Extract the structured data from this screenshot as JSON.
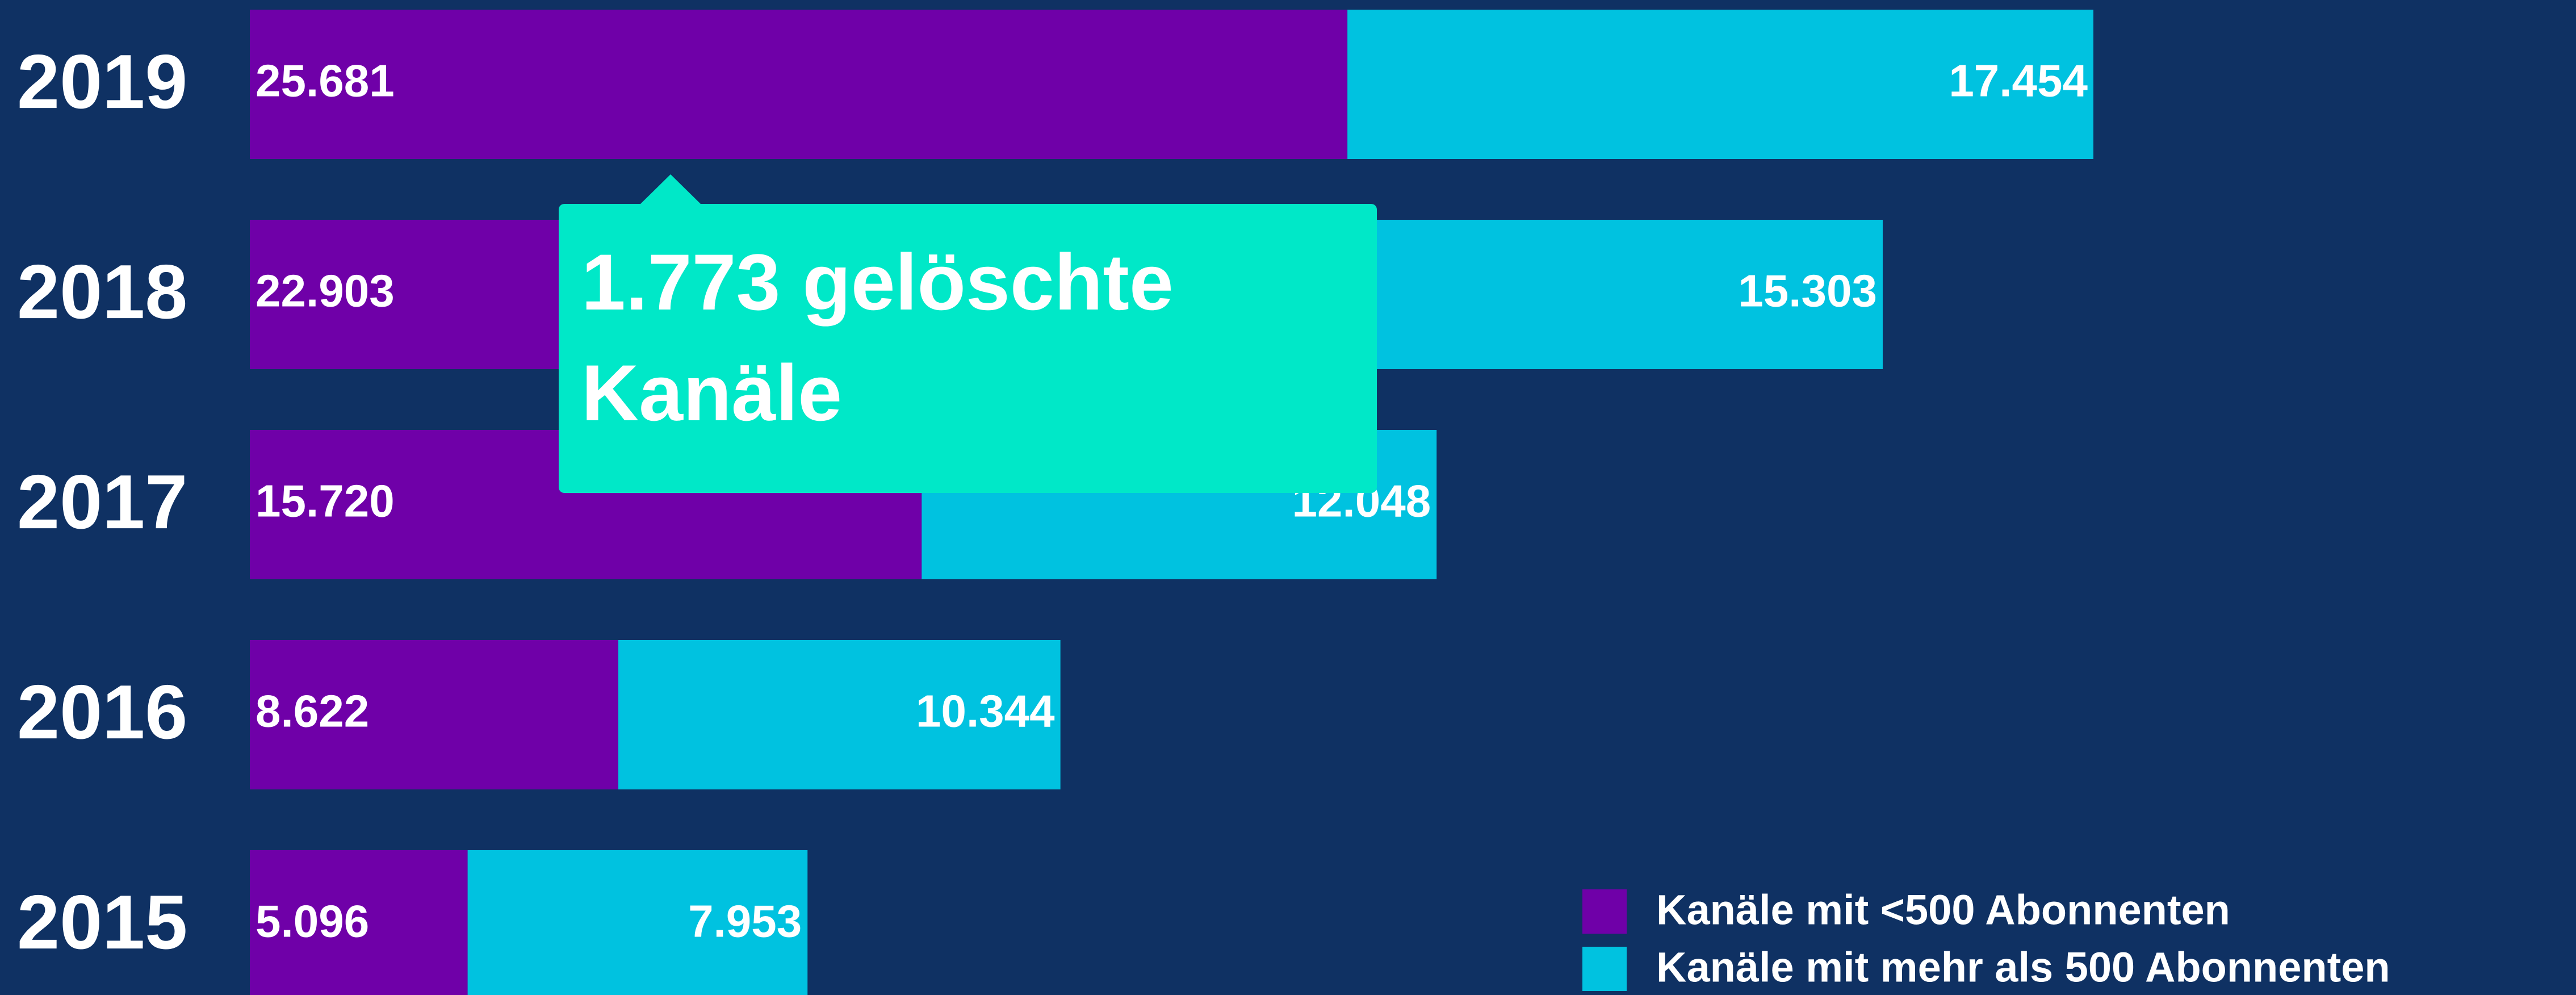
{
  "chart_data": {
    "type": "stacked-bar-horizontal",
    "categories": [
      "2019",
      "2018",
      "2017",
      "2016",
      "2015"
    ],
    "series": [
      {
        "name": "Kanäle mit <500 Abonnenten",
        "color": "#6f00a8",
        "values": [
          25681,
          22903,
          15720,
          8622,
          5096
        ],
        "value_labels": [
          "25.681",
          "22.903",
          "15.720",
          "8.622",
          "5.096"
        ]
      },
      {
        "name": "Kanäle mit mehr als 500 Abonnenten",
        "color": "#00c2e0",
        "values": [
          17454,
          15303,
          12048,
          10344,
          7953
        ],
        "value_labels": [
          "17.454",
          "15.303",
          "12.048",
          "10.344",
          "7.953"
        ]
      }
    ],
    "annotation": "1.773 gelöschte Kanäle",
    "annotation_color": "#00e8c8",
    "background": "#0f3163",
    "legend": "bottom-right"
  }
}
